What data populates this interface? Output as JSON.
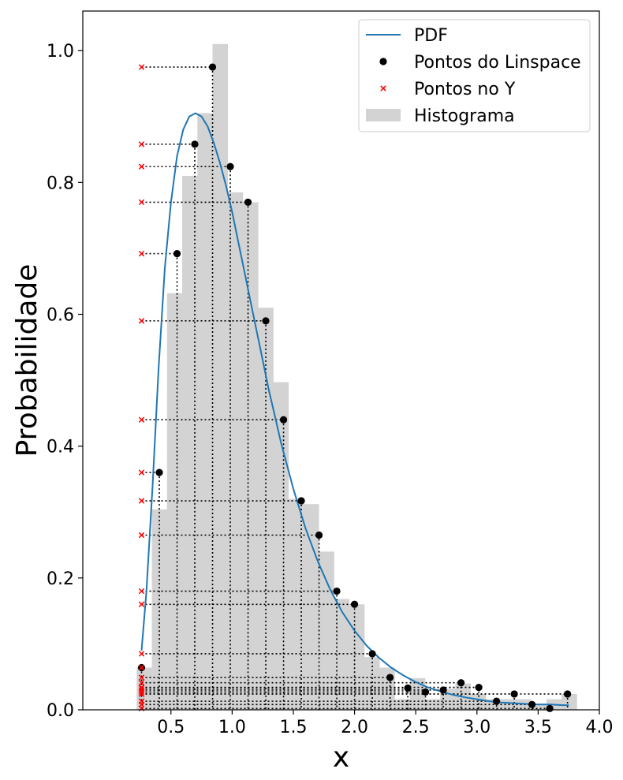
{
  "chart_data": {
    "type": "line",
    "xlabel": "x",
    "ylabel": "Probabilidade",
    "xlim": [
      -0.22,
      4.0
    ],
    "ylim": [
      0,
      1.06
    ],
    "xticks": [
      0.5,
      1.0,
      1.5,
      2.0,
      2.5,
      3.0,
      3.5,
      4.0
    ],
    "xtick_labels": [
      "0.5",
      "1.0",
      "1.5",
      "2.0",
      "2.5",
      "3.0",
      "3.5",
      "4.0"
    ],
    "yticks": [
      0.0,
      0.2,
      0.4,
      0.6,
      0.8,
      1.0
    ],
    "ytick_labels": [
      "0.0",
      "0.2",
      "0.4",
      "0.6",
      "0.8",
      "1.0"
    ],
    "grid": false,
    "legend_position": "top-right",
    "legend": [
      {
        "label": "PDF",
        "kind": "line"
      },
      {
        "label": "Pontos do Linspace",
        "kind": "dot"
      },
      {
        "label": "Pontos no Y",
        "kind": "x"
      },
      {
        "label": "Histograma",
        "kind": "patch"
      }
    ],
    "colors": {
      "pdf": "#1f77b4",
      "points": "#000000",
      "ymarks": "#ff0000",
      "hist": "#d3d3d3"
    },
    "histogram": {
      "bin_edges": [
        0.22,
        0.344,
        0.468,
        0.592,
        0.716,
        0.84,
        0.964,
        1.088,
        1.212,
        1.336,
        1.46,
        1.584,
        1.708,
        1.832,
        1.956,
        2.08,
        2.204,
        2.328,
        2.452,
        2.576,
        2.7,
        2.824,
        2.948,
        3.072,
        3.196,
        3.32,
        3.444,
        3.568,
        3.692,
        3.816
      ],
      "heights": [
        0.064,
        0.304,
        0.632,
        0.81,
        0.905,
        1.01,
        0.785,
        0.77,
        0.61,
        0.497,
        0.32,
        0.312,
        0.24,
        0.168,
        0.16,
        0.08,
        0.064,
        0.016,
        0.048,
        0.016,
        0.032,
        0.04,
        0.024,
        0.016,
        0.016,
        0.016,
        0.008,
        0.016,
        0.024
      ]
    },
    "pdf": {
      "x": [
        0.26,
        0.3,
        0.35,
        0.4,
        0.45,
        0.5,
        0.55,
        0.6,
        0.65,
        0.7,
        0.75,
        0.8,
        0.85,
        0.9,
        0.95,
        1.0,
        1.05,
        1.1,
        1.15,
        1.2,
        1.25,
        1.3,
        1.35,
        1.4,
        1.45,
        1.5,
        1.6,
        1.7,
        1.8,
        1.9,
        2.0,
        2.1,
        2.2,
        2.3,
        2.4,
        2.5,
        2.6,
        2.7,
        2.8,
        2.9,
        3.0,
        3.1,
        3.2,
        3.3,
        3.4,
        3.5,
        3.6,
        3.7,
        3.75
      ],
      "y": [
        0.09,
        0.18,
        0.34,
        0.52,
        0.67,
        0.77,
        0.84,
        0.88,
        0.9,
        0.905,
        0.9,
        0.885,
        0.86,
        0.83,
        0.795,
        0.755,
        0.71,
        0.665,
        0.62,
        0.575,
        0.53,
        0.485,
        0.445,
        0.405,
        0.37,
        0.335,
        0.275,
        0.225,
        0.183,
        0.148,
        0.12,
        0.097,
        0.079,
        0.064,
        0.052,
        0.042,
        0.034,
        0.028,
        0.023,
        0.019,
        0.016,
        0.013,
        0.011,
        0.01,
        0.009,
        0.008,
        0.008,
        0.007,
        0.007
      ]
    },
    "linspace_points": {
      "x": [
        0.26,
        0.405,
        0.55,
        0.695,
        0.84,
        0.985,
        1.13,
        1.275,
        1.42,
        1.565,
        1.71,
        1.855,
        2.0,
        2.145,
        2.29,
        2.435,
        2.58,
        2.725,
        2.87,
        3.015,
        3.16,
        3.305,
        3.45,
        3.595,
        3.74
      ],
      "y": [
        0.064,
        0.36,
        0.692,
        0.858,
        0.975,
        0.824,
        0.77,
        0.59,
        0.44,
        0.317,
        0.265,
        0.18,
        0.16,
        0.085,
        0.049,
        0.033,
        0.027,
        0.03,
        0.041,
        0.034,
        0.013,
        0.024,
        0.008,
        0.002,
        0.024
      ]
    },
    "y_marks_x": 0.26
  }
}
